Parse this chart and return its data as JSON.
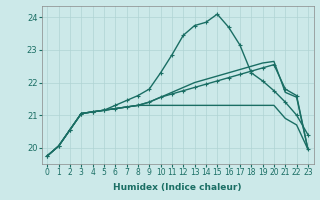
{
  "xlabel": "Humidex (Indice chaleur)",
  "background_color": "#cce9e9",
  "grid_color": "#b0d4d4",
  "line_color": "#1a6e64",
  "xlim": [
    -0.5,
    23.5
  ],
  "ylim": [
    19.5,
    24.35
  ],
  "yticks": [
    20,
    21,
    22,
    23,
    24
  ],
  "xticks": [
    0,
    1,
    2,
    3,
    4,
    5,
    6,
    7,
    8,
    9,
    10,
    11,
    12,
    13,
    14,
    15,
    16,
    17,
    18,
    19,
    20,
    21,
    22,
    23
  ],
  "lines": [
    {
      "x": [
        0,
        1,
        2,
        3,
        4,
        5,
        6,
        7,
        8,
        9,
        10,
        11,
        12,
        13,
        14,
        15,
        16,
        17,
        18,
        19,
        20,
        21,
        22,
        23
      ],
      "y": [
        19.75,
        20.05,
        20.55,
        21.05,
        21.1,
        21.15,
        21.2,
        21.25,
        21.3,
        21.3,
        21.3,
        21.3,
        21.3,
        21.3,
        21.3,
        21.3,
        21.3,
        21.3,
        21.3,
        21.3,
        21.3,
        20.9,
        20.7,
        19.95
      ],
      "marker": false,
      "linewidth": 1.0
    },
    {
      "x": [
        0,
        1,
        2,
        3,
        4,
        5,
        6,
        7,
        8,
        9,
        10,
        11,
        12,
        13,
        14,
        15,
        16,
        17,
        18,
        19,
        20,
        21,
        22,
        23
      ],
      "y": [
        19.75,
        20.05,
        20.55,
        21.05,
        21.1,
        21.15,
        21.2,
        21.25,
        21.3,
        21.4,
        21.55,
        21.7,
        21.85,
        22.0,
        22.1,
        22.2,
        22.3,
        22.4,
        22.5,
        22.6,
        22.65,
        21.7,
        21.55,
        19.95
      ],
      "marker": false,
      "linewidth": 1.0
    },
    {
      "x": [
        0,
        1,
        2,
        3,
        4,
        5,
        6,
        7,
        8,
        9,
        10,
        11,
        12,
        13,
        14,
        15,
        16,
        17,
        18,
        19,
        20,
        21,
        22,
        23
      ],
      "y": [
        19.75,
        20.05,
        20.55,
        21.05,
        21.1,
        21.15,
        21.2,
        21.25,
        21.3,
        21.4,
        21.55,
        21.65,
        21.75,
        21.85,
        21.95,
        22.05,
        22.15,
        22.25,
        22.35,
        22.45,
        22.55,
        21.8,
        21.6,
        19.95
      ],
      "marker": true,
      "linewidth": 1.0
    },
    {
      "x": [
        0,
        1,
        2,
        3,
        4,
        5,
        6,
        7,
        8,
        9,
        10,
        11,
        12,
        13,
        14,
        15,
        16,
        17,
        18,
        19,
        20,
        21,
        22,
        23
      ],
      "y": [
        19.75,
        20.05,
        20.55,
        21.05,
        21.1,
        21.15,
        21.3,
        21.45,
        21.6,
        21.8,
        22.3,
        22.85,
        23.45,
        23.75,
        23.85,
        24.1,
        23.7,
        23.15,
        22.3,
        22.05,
        21.75,
        21.4,
        21.0,
        20.4
      ],
      "marker": true,
      "linewidth": 1.0
    }
  ]
}
